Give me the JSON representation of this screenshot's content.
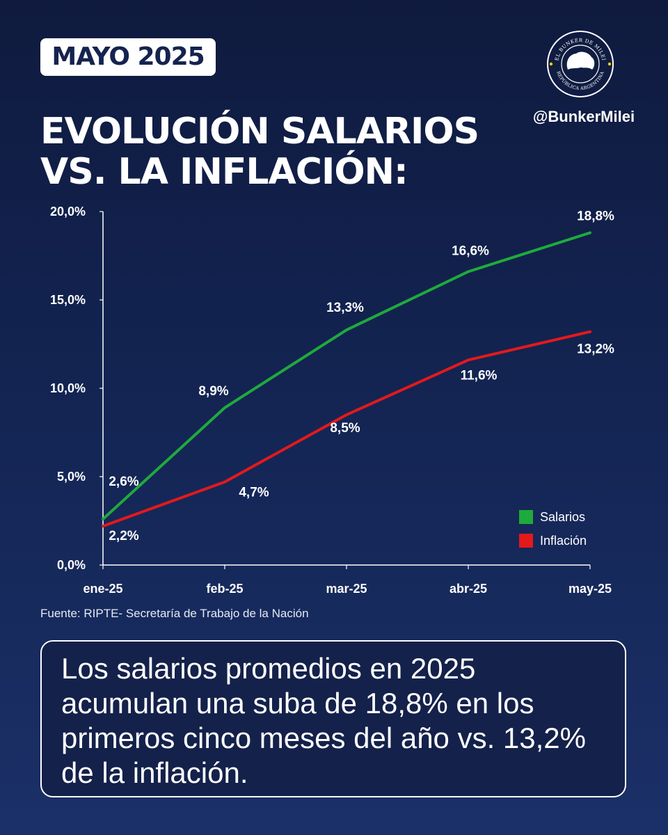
{
  "header": {
    "badge": "MAYO 2025",
    "title_line1": "EVOLUCIÓN SALARIOS",
    "title_line2": "VS. LA INFLACIÓN:",
    "handle": "@BunkerMilei",
    "logo": {
      "icon": "bunker-milei-seal-icon",
      "top_text": "EL BUNKER DE MILEI",
      "bottom_text": "REPÚBLICA ARGENTINA"
    }
  },
  "colors": {
    "salarios": "#1faa3c",
    "inflacion": "#e3191c",
    "axis": "#ffffff"
  },
  "chart_data": {
    "type": "line",
    "categories": [
      "ene-25",
      "feb-25",
      "mar-25",
      "abr-25",
      "may-25"
    ],
    "series": [
      {
        "name": "Salarios",
        "values": [
          2.6,
          8.9,
          13.3,
          16.6,
          18.8
        ],
        "labels": [
          "2,6%",
          "8,9%",
          "13,3%",
          "16,6%",
          "18,8%"
        ]
      },
      {
        "name": "Inflación",
        "values": [
          2.2,
          4.7,
          8.5,
          11.6,
          13.2
        ],
        "labels": [
          "2,2%",
          "4,7%",
          "8,5%",
          "11,6%",
          "13,2%"
        ]
      }
    ],
    "yticks": [
      0,
      5,
      10,
      15,
      20
    ],
    "ytick_labels": [
      "0,0%",
      "5,0%",
      "10,0%",
      "15,0%",
      "20,0%"
    ],
    "ylim": [
      0,
      20
    ],
    "grid": false,
    "legend_position": "bottom-right"
  },
  "footer": {
    "source": "Fuente: RIPTE- Secretaría de Trabajo de la Nación",
    "summary": "Los salarios promedios en 2025 acumulan una suba de 18,8% en los primeros cinco meses del año vs. 13,2% de la inflación."
  }
}
